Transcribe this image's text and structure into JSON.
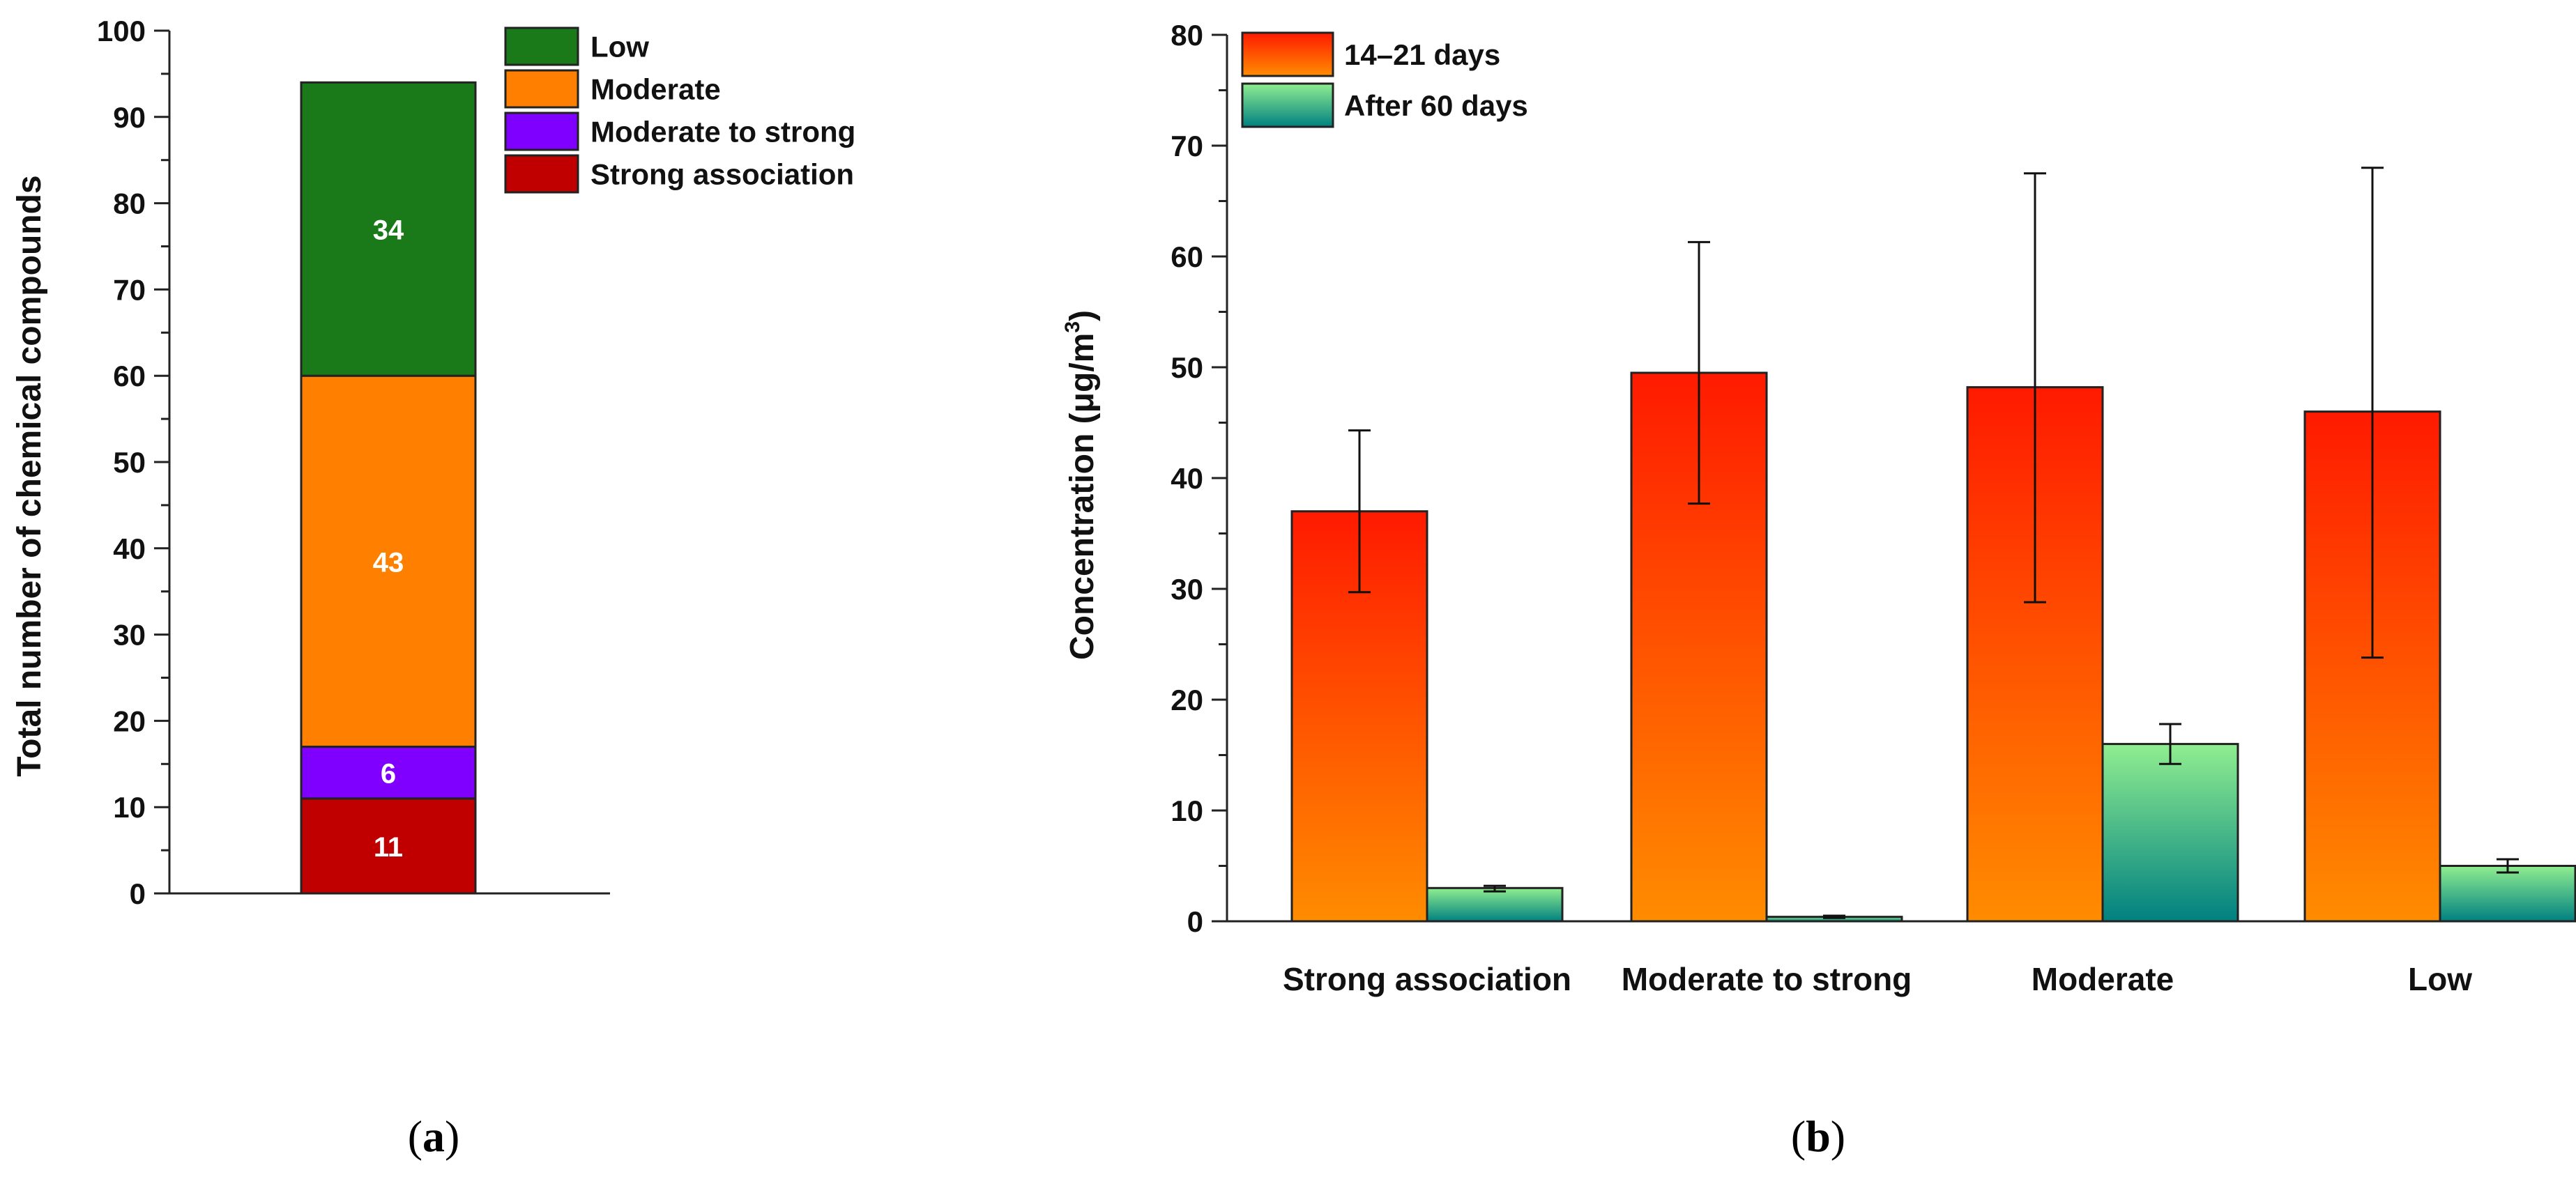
{
  "chart_data": [
    {
      "panel": "(a)",
      "type": "bar",
      "stacked": true,
      "ylabel": "Total number of chemical compounds",
      "ylim": [
        0,
        100
      ],
      "yticks": [
        0,
        10,
        20,
        30,
        40,
        50,
        60,
        70,
        80,
        90,
        100
      ],
      "legend_placement": "top-right",
      "series": [
        {
          "name": "Strong association",
          "value": 11,
          "color": "#c00000"
        },
        {
          "name": "Moderate to strong",
          "value": 6,
          "color": "#8000ff"
        },
        {
          "name": "Moderate",
          "value": 43,
          "color": "#ff8000"
        },
        {
          "name": "Low",
          "value": 34,
          "color": "#1a7a1a"
        }
      ],
      "legend_order": [
        "Low",
        "Moderate",
        "Moderate to strong",
        "Strong association"
      ]
    },
    {
      "panel": "(b)",
      "type": "bar",
      "ylabel_main": "Concentration (μg/m",
      "ylabel_sup": "3",
      "ylabel_close": ")",
      "ylim": [
        0,
        80
      ],
      "yticks": [
        0,
        10,
        20,
        30,
        40,
        50,
        60,
        70,
        80
      ],
      "legend_placement": "top-left",
      "categories": [
        "Strong association",
        "Moderate to strong",
        "Moderate",
        "Low"
      ],
      "series": [
        {
          "name": "14–21 days",
          "values": [
            37,
            49.5,
            48.2,
            46
          ],
          "err_low": [
            29.7,
            37.7,
            28.8,
            23.8
          ],
          "err_high": [
            44.3,
            61.3,
            67.5,
            68
          ],
          "color_top": "#ff1a00",
          "color_bottom": "#ff8c00"
        },
        {
          "name": "After 60 days",
          "values": [
            3,
            0.4,
            16,
            5
          ],
          "err_low": [
            2.7,
            0.3,
            14.2,
            4.4
          ],
          "err_high": [
            3.2,
            0.5,
            17.8,
            5.6
          ],
          "color_top": "#90ee90",
          "color_bottom": "#008080"
        }
      ]
    }
  ]
}
